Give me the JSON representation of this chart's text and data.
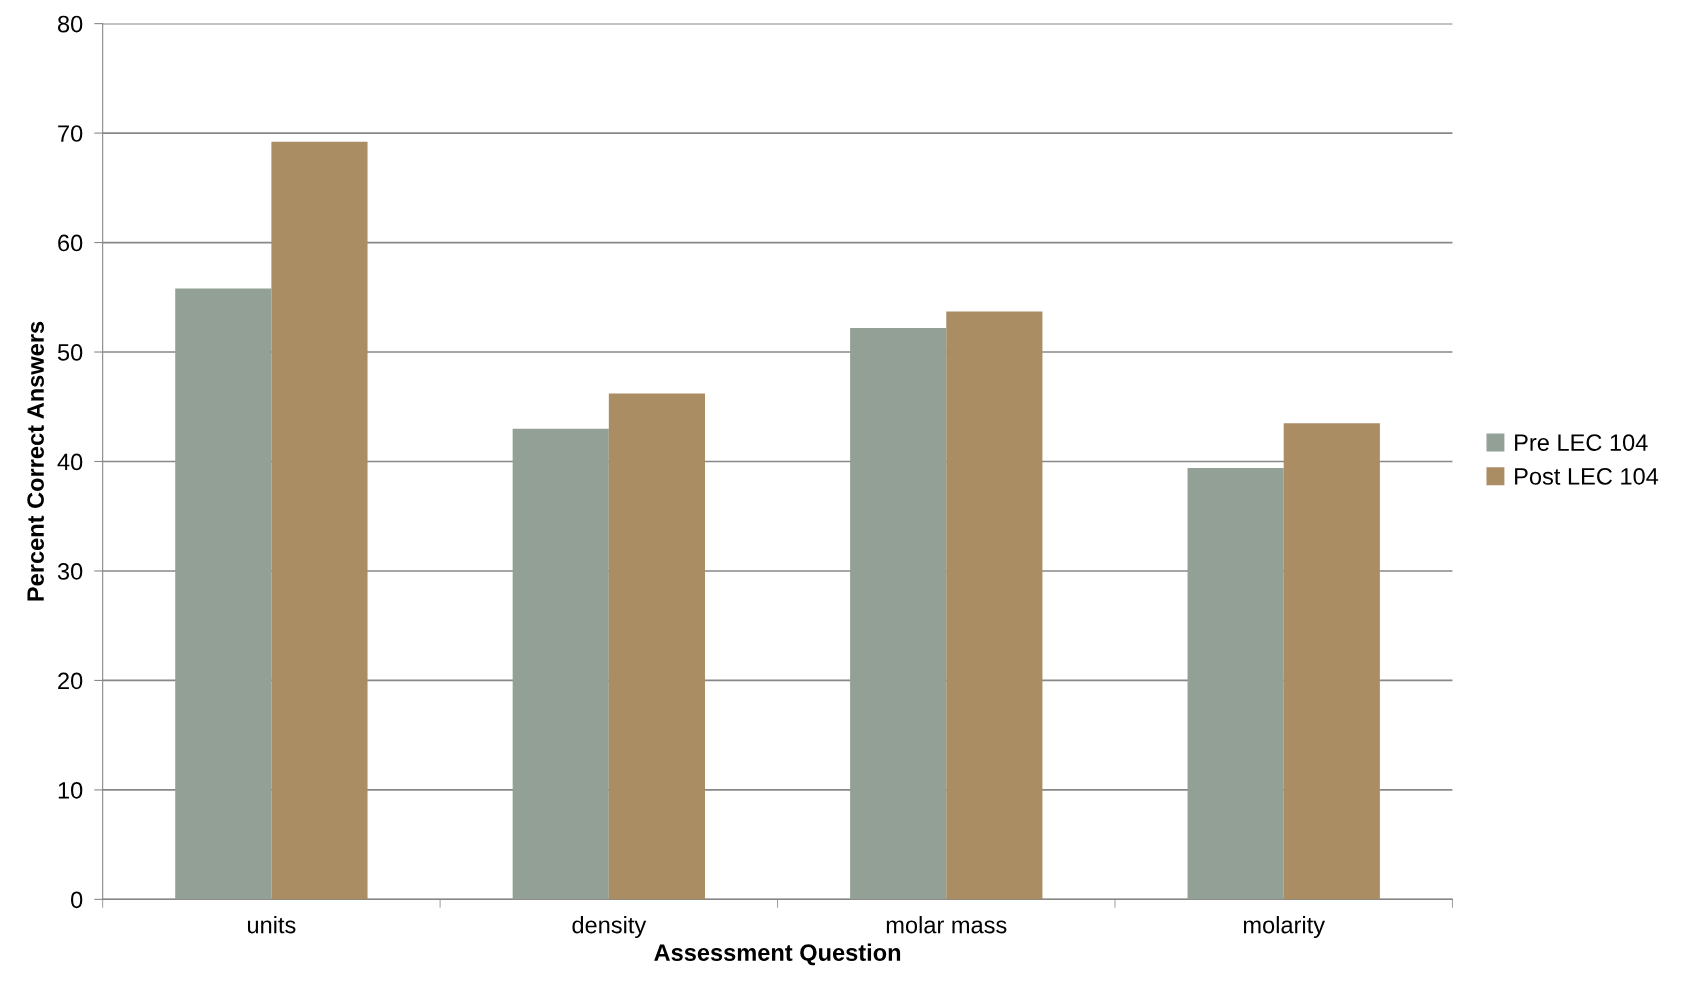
{
  "chart_data": {
    "type": "bar",
    "xlabel": "Assessment Question",
    "ylabel": "Percent Correct Answers",
    "categories": [
      "units",
      "density",
      "molar mass",
      "molarity"
    ],
    "series": [
      {
        "name": "Pre LEC 104",
        "color": "#92a096",
        "values": [
          55.8,
          43.0,
          52.2,
          39.4
        ]
      },
      {
        "name": "Post LEC 104",
        "color": "#ab8d64",
        "values": [
          69.2,
          46.2,
          53.7,
          43.5
        ]
      }
    ],
    "ylim": [
      0,
      80
    ],
    "yticks": [
      0,
      10,
      20,
      30,
      40,
      50,
      60,
      70,
      80
    ],
    "grid": "y",
    "legend": "right"
  }
}
